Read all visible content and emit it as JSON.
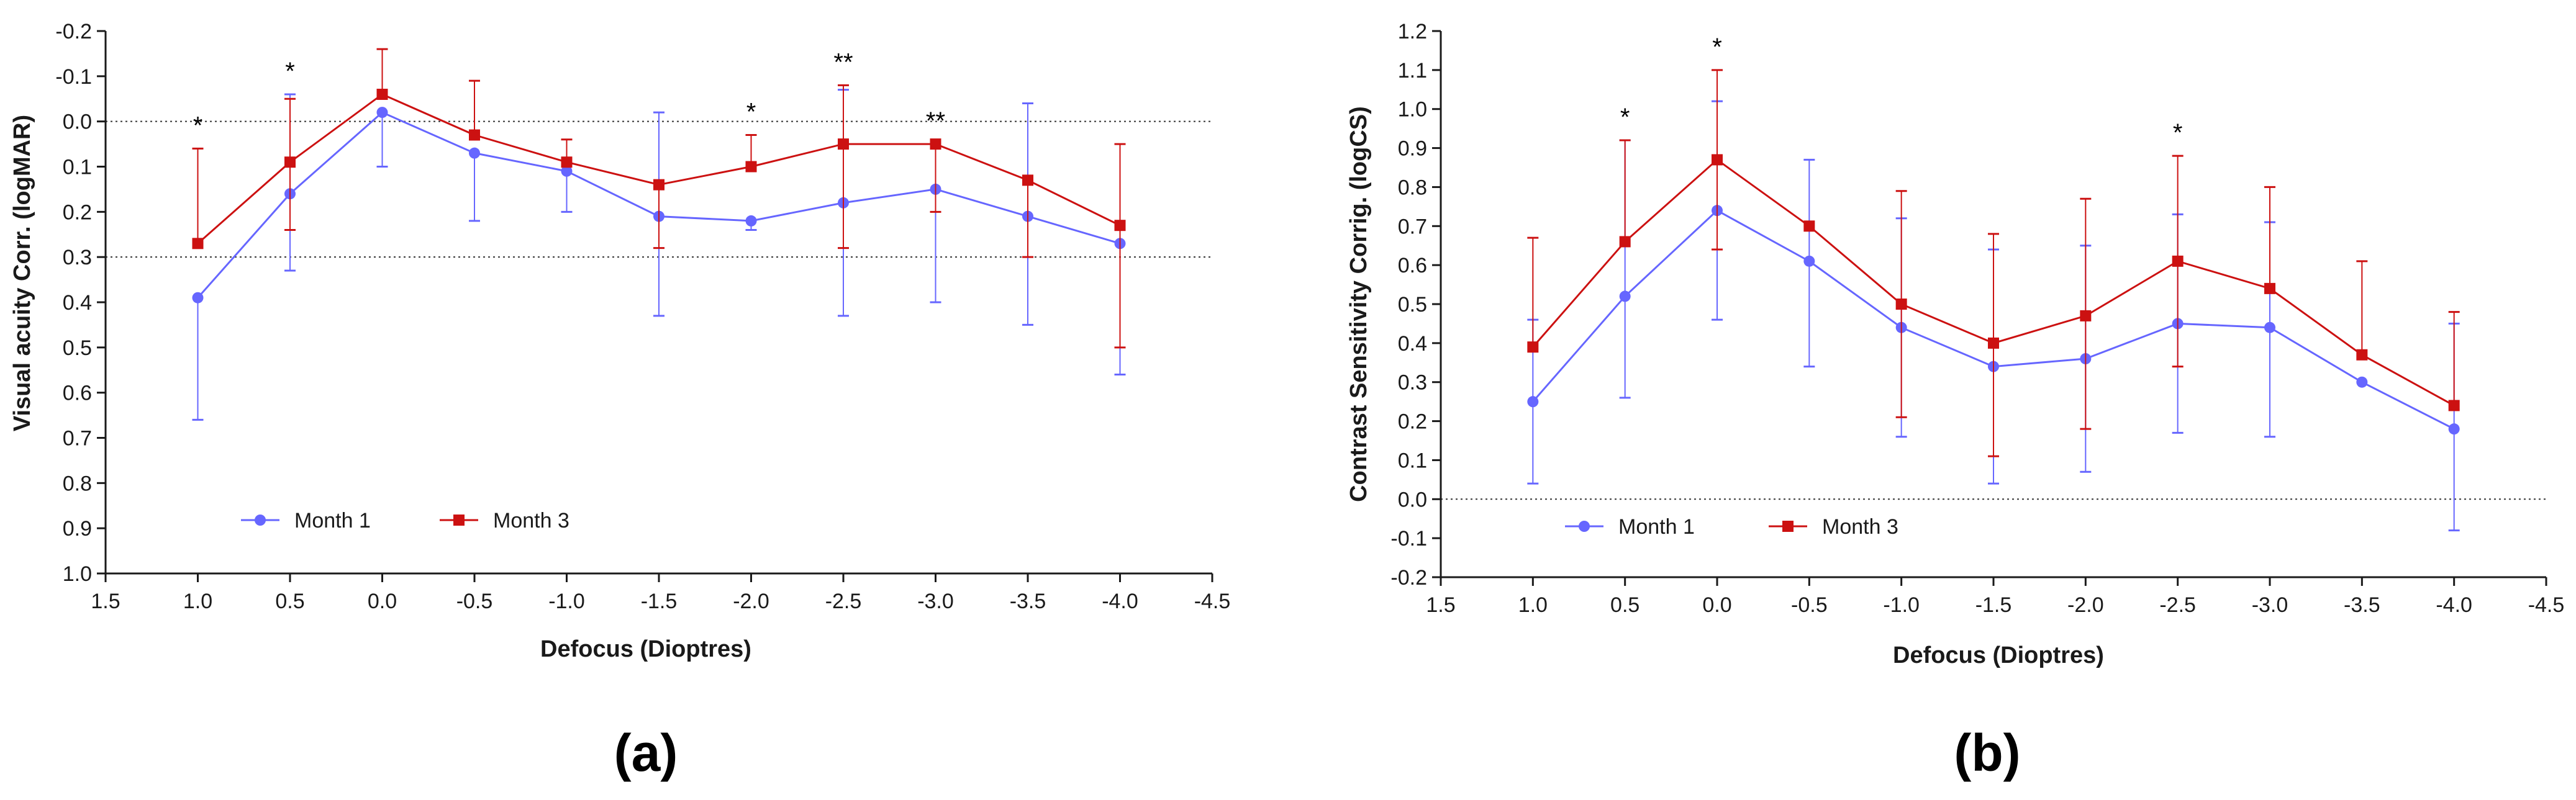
{
  "colors": {
    "month1": "#6666ff",
    "month3": "#cc1111",
    "axis": "#1a1a1a",
    "refline": "#333333"
  },
  "chart_data": [
    {
      "panel_label": "(a)",
      "type": "line",
      "title": "",
      "xlabel": "Defocus (Dioptres)",
      "ylabel": "Visual acuity Corr. (logMAR)",
      "x_reversed": true,
      "y_reversed": true,
      "xlim": [
        1.5,
        -4.5
      ],
      "ylim": [
        -0.2,
        1.0
      ],
      "x_ticks": [
        "1.5",
        "1.0",
        "0.5",
        "0.0",
        "-0.5",
        "-1.0",
        "-1.5",
        "-2.0",
        "-2.5",
        "-3.0",
        "-3.5",
        "-4.0",
        "-4.5"
      ],
      "x_tick_values": [
        1.5,
        1.0,
        0.5,
        0.0,
        -0.5,
        -1.0,
        -1.5,
        -2.0,
        -2.5,
        -3.0,
        -3.5,
        -4.0,
        -4.5
      ],
      "y_ticks": [
        "-0.2",
        "-0.1",
        "0.0",
        "0.1",
        "0.2",
        "0.3",
        "0.4",
        "0.5",
        "0.6",
        "0.7",
        "0.8",
        "0.9",
        "1.0"
      ],
      "y_tick_values": [
        -0.2,
        -0.1,
        0.0,
        0.1,
        0.2,
        0.3,
        0.4,
        0.5,
        0.6,
        0.7,
        0.8,
        0.9,
        1.0
      ],
      "reference_lines": [
        0.0,
        0.3
      ],
      "x": [
        1.0,
        0.5,
        0.0,
        -0.5,
        -1.0,
        -1.5,
        -2.0,
        -2.5,
        -3.0,
        -3.5,
        -4.0
      ],
      "series": [
        {
          "name": "Month 1",
          "marker": "circle",
          "values": [
            0.39,
            0.16,
            -0.02,
            0.07,
            0.11,
            0.21,
            0.22,
            0.18,
            0.15,
            0.21,
            0.27
          ],
          "err_high": [
            0.66,
            0.33,
            0.1,
            0.22,
            0.2,
            0.43,
            0.24,
            0.43,
            0.4,
            0.45,
            0.56
          ],
          "err_low": [
            null,
            -0.06,
            null,
            null,
            null,
            -0.02,
            null,
            -0.07,
            null,
            -0.04,
            null
          ]
        },
        {
          "name": "Month 3",
          "marker": "square",
          "values": [
            0.27,
            0.09,
            -0.06,
            0.03,
            0.09,
            0.14,
            0.1,
            0.05,
            0.05,
            0.13,
            0.23
          ],
          "err_high": [
            null,
            0.24,
            null,
            null,
            null,
            0.28,
            null,
            0.28,
            0.2,
            0.3,
            0.5
          ],
          "err_low": [
            0.06,
            -0.05,
            -0.16,
            -0.09,
            0.04,
            null,
            0.03,
            -0.08,
            null,
            null,
            0.05
          ]
        }
      ],
      "annotations": [
        {
          "x": 1.0,
          "label": "*"
        },
        {
          "x": 0.5,
          "label": "*"
        },
        {
          "x": -2.0,
          "label": "*"
        },
        {
          "x": -2.5,
          "label": "**"
        },
        {
          "x": -3.0,
          "label": "**"
        }
      ],
      "legend_position": "bottom-left"
    },
    {
      "panel_label": "(b)",
      "type": "line",
      "title": "",
      "xlabel": "Defocus (Dioptres)",
      "ylabel": "Contrast Sensitivity Corrig. (logCS)",
      "x_reversed": true,
      "y_reversed": false,
      "xlim": [
        1.5,
        -4.5
      ],
      "ylim": [
        -0.2,
        1.2
      ],
      "x_ticks": [
        "1.5",
        "1.0",
        "0.5",
        "0.0",
        "-0.5",
        "-1.0",
        "-1.5",
        "-2.0",
        "-2.5",
        "-3.0",
        "-3.5",
        "-4.0",
        "-4.5"
      ],
      "x_tick_values": [
        1.5,
        1.0,
        0.5,
        0.0,
        -0.5,
        -1.0,
        -1.5,
        -2.0,
        -2.5,
        -3.0,
        -3.5,
        -4.0,
        -4.5
      ],
      "y_ticks": [
        "-0.2",
        "-0.1",
        "0.0",
        "0.1",
        "0.2",
        "0.3",
        "0.4",
        "0.5",
        "0.6",
        "0.7",
        "0.8",
        "0.9",
        "1.0",
        "1.1",
        "1.2"
      ],
      "y_tick_values": [
        -0.2,
        -0.1,
        0.0,
        0.1,
        0.2,
        0.3,
        0.4,
        0.5,
        0.6,
        0.7,
        0.8,
        0.9,
        1.0,
        1.1,
        1.2
      ],
      "reference_lines": [
        0.0
      ],
      "x": [
        1.0,
        0.5,
        0.0,
        -0.5,
        -1.0,
        -1.5,
        -2.0,
        -2.5,
        -3.0,
        -3.5,
        -4.0
      ],
      "series": [
        {
          "name": "Month 1",
          "marker": "circle",
          "values": [
            0.25,
            0.52,
            0.74,
            0.61,
            0.44,
            0.34,
            0.36,
            0.45,
            0.44,
            0.3,
            0.18
          ],
          "err_high": [
            0.04,
            0.26,
            1.02,
            0.34,
            0.72,
            0.04,
            0.07,
            0.17,
            0.71,
            null,
            0.45
          ],
          "err_low": [
            0.46,
            0.92,
            0.46,
            0.87,
            0.16,
            0.64,
            0.65,
            0.73,
            0.16,
            null,
            -0.08
          ]
        },
        {
          "name": "Month 3",
          "marker": "square",
          "values": [
            0.39,
            0.66,
            0.87,
            0.7,
            0.5,
            0.4,
            0.47,
            0.61,
            0.54,
            0.37,
            0.24
          ],
          "err_high": [
            0.67,
            0.92,
            1.1,
            null,
            0.79,
            0.68,
            0.77,
            0.88,
            0.8,
            0.61,
            0.48
          ],
          "err_low": [
            null,
            null,
            0.64,
            null,
            0.21,
            0.11,
            0.18,
            0.34,
            null,
            null,
            null
          ]
        }
      ],
      "annotations": [
        {
          "x": 0.5,
          "label": "*"
        },
        {
          "x": 0.0,
          "label": "*"
        },
        {
          "x": -2.5,
          "label": "*"
        }
      ],
      "legend_position": "bottom-left"
    }
  ]
}
